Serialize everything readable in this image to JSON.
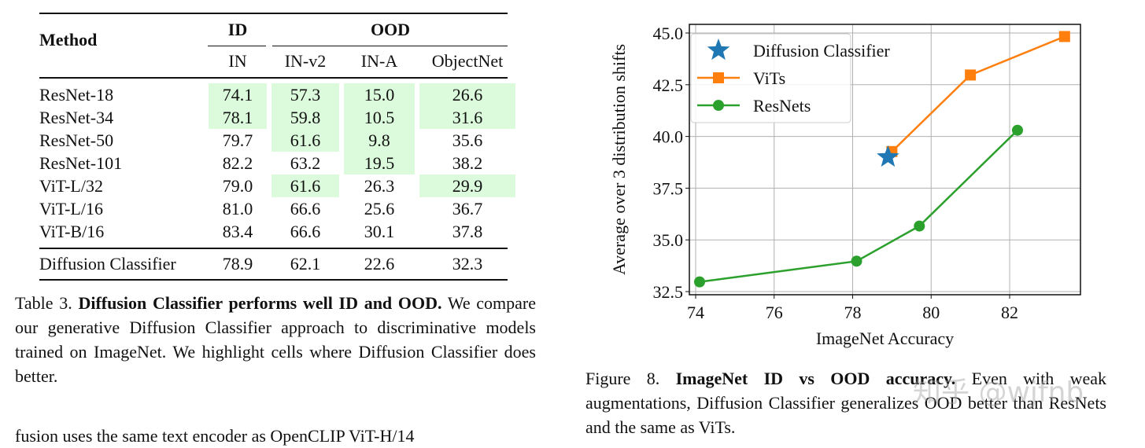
{
  "table": {
    "headers": {
      "method": "Method",
      "id_group": "ID",
      "ood_group": "OOD",
      "columns": [
        "IN",
        "IN-v2",
        "IN-A",
        "ObjectNet"
      ]
    },
    "rows": [
      {
        "method": "ResNet-18",
        "values": [
          "74.1",
          "57.3",
          "15.0",
          "26.6"
        ],
        "highlight": [
          true,
          true,
          true,
          true
        ]
      },
      {
        "method": "ResNet-34",
        "values": [
          "78.1",
          "59.8",
          "10.5",
          "31.6"
        ],
        "highlight": [
          true,
          true,
          true,
          true
        ]
      },
      {
        "method": "ResNet-50",
        "values": [
          "79.7",
          "61.6",
          "9.8",
          "35.6"
        ],
        "highlight": [
          false,
          true,
          true,
          false
        ]
      },
      {
        "method": "ResNet-101",
        "values": [
          "82.2",
          "63.2",
          "19.5",
          "38.2"
        ],
        "highlight": [
          false,
          false,
          true,
          false
        ]
      },
      {
        "method": "ViT-L/32",
        "values": [
          "79.0",
          "61.6",
          "26.3",
          "29.9"
        ],
        "highlight": [
          false,
          true,
          false,
          true
        ]
      },
      {
        "method": "ViT-L/16",
        "values": [
          "81.0",
          "66.6",
          "25.6",
          "36.7"
        ],
        "highlight": [
          false,
          false,
          false,
          false
        ]
      },
      {
        "method": "ViT-B/16",
        "values": [
          "83.4",
          "66.6",
          "30.1",
          "37.8"
        ],
        "highlight": [
          false,
          false,
          false,
          false
        ]
      }
    ],
    "ours": {
      "method": "Diffusion Classifier",
      "values": [
        "78.9",
        "62.1",
        "22.6",
        "32.3"
      ]
    },
    "highlight_color": "#dcfadc"
  },
  "table_caption": {
    "label": "Table 3.",
    "title": "Diffusion Classifier performs well ID and OOD.",
    "body": "We compare our generative Diffusion Classifier approach to discriminative models trained on ImageNet. We highlight cells where Diffusion Classifier does better."
  },
  "body_text_fragment": "fusion uses the same text encoder as OpenCLIP ViT-H/14",
  "figure_caption": {
    "label": "Figure 8.",
    "title": "ImageNet ID vs OOD accuracy.",
    "body": "Even with weak augmentations, Diffusion Classifier generalizes OOD better than ResNets and the same as ViTs."
  },
  "watermark": "知乎 @wjfnb",
  "chart_data": {
    "type": "line",
    "title": "",
    "xlabel": "ImageNet Accuracy",
    "ylabel": "Average over 3 distribution shifts",
    "xlim": [
      73.6,
      83.8
    ],
    "ylim": [
      32.4,
      45.5
    ],
    "xticks": [
      "74",
      "76",
      "78",
      "80",
      "82"
    ],
    "yticks": [
      "32.5",
      "35.0",
      "37.5",
      "40.0",
      "42.5",
      "45.0"
    ],
    "grid": true,
    "legend_position": "top-left",
    "series": [
      {
        "name": "Diffusion Classifier",
        "marker": "star",
        "color": "#1f77b4",
        "x": [
          78.9
        ],
        "y": [
          39.0
        ]
      },
      {
        "name": "ViTs",
        "marker": "square",
        "color": "#ff7f0e",
        "x": [
          79.0,
          81.0,
          83.4
        ],
        "y": [
          39.27,
          42.97,
          44.83
        ]
      },
      {
        "name": "ResNets",
        "marker": "circle",
        "color": "#2ca02c",
        "x": [
          74.1,
          78.1,
          79.7,
          82.2
        ],
        "y": [
          32.97,
          33.97,
          35.67,
          40.3
        ]
      }
    ]
  }
}
